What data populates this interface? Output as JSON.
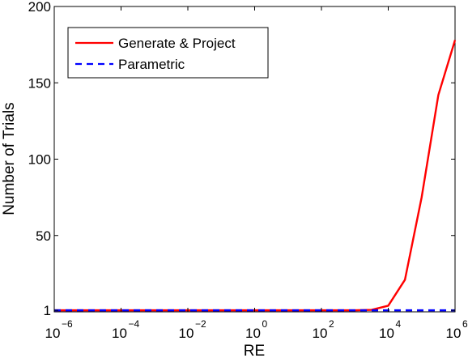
{
  "chart_data": {
    "type": "line",
    "title": "",
    "xlabel": "RE",
    "ylabel": "Number of Trials",
    "x_scale": "log",
    "xlim": [
      1e-06,
      1000000.0
    ],
    "ylim": [
      0,
      200
    ],
    "x_ticks": [
      {
        "base": "10",
        "exp": "−6",
        "value": 1e-06
      },
      {
        "base": "10",
        "exp": "−4",
        "value": 0.0001
      },
      {
        "base": "10",
        "exp": "−2",
        "value": 0.01
      },
      {
        "base": "10",
        "exp": "0",
        "value": 1
      },
      {
        "base": "10",
        "exp": "2",
        "value": 100.0
      },
      {
        "base": "10",
        "exp": "4",
        "value": 10000.0
      },
      {
        "base": "10",
        "exp": "6",
        "value": 1000000.0
      }
    ],
    "y_ticks": [
      {
        "label": "1",
        "value": 1
      },
      {
        "label": "50",
        "value": 50
      },
      {
        "label": "100",
        "value": 100
      },
      {
        "label": "150",
        "value": 150
      },
      {
        "label": "200",
        "value": 200
      }
    ],
    "grid": false,
    "legend_position": "top-left",
    "series": [
      {
        "name": "Generate & Project",
        "color": "#ff0000",
        "line_style": "solid",
        "x": [
          1e-06,
          1e-05,
          0.0001,
          0.001,
          0.01,
          0.1,
          1,
          10,
          100,
          1000,
          3162,
          10000,
          31623,
          100000,
          316228,
          1000000
        ],
        "y": [
          1,
          1,
          1,
          1,
          1,
          1,
          1,
          1,
          1,
          1,
          1.3,
          4,
          21,
          75,
          142,
          178
        ]
      },
      {
        "name": "Parametric",
        "color": "#0000ff",
        "line_style": "dashed",
        "x": [
          1e-06,
          1e-05,
          0.0001,
          0.001,
          0.01,
          0.1,
          1,
          10,
          100,
          1000,
          10000,
          100000,
          1000000
        ],
        "y": [
          1,
          1,
          1,
          1,
          1,
          1,
          1,
          1,
          1,
          1,
          1,
          1,
          1
        ]
      }
    ]
  }
}
